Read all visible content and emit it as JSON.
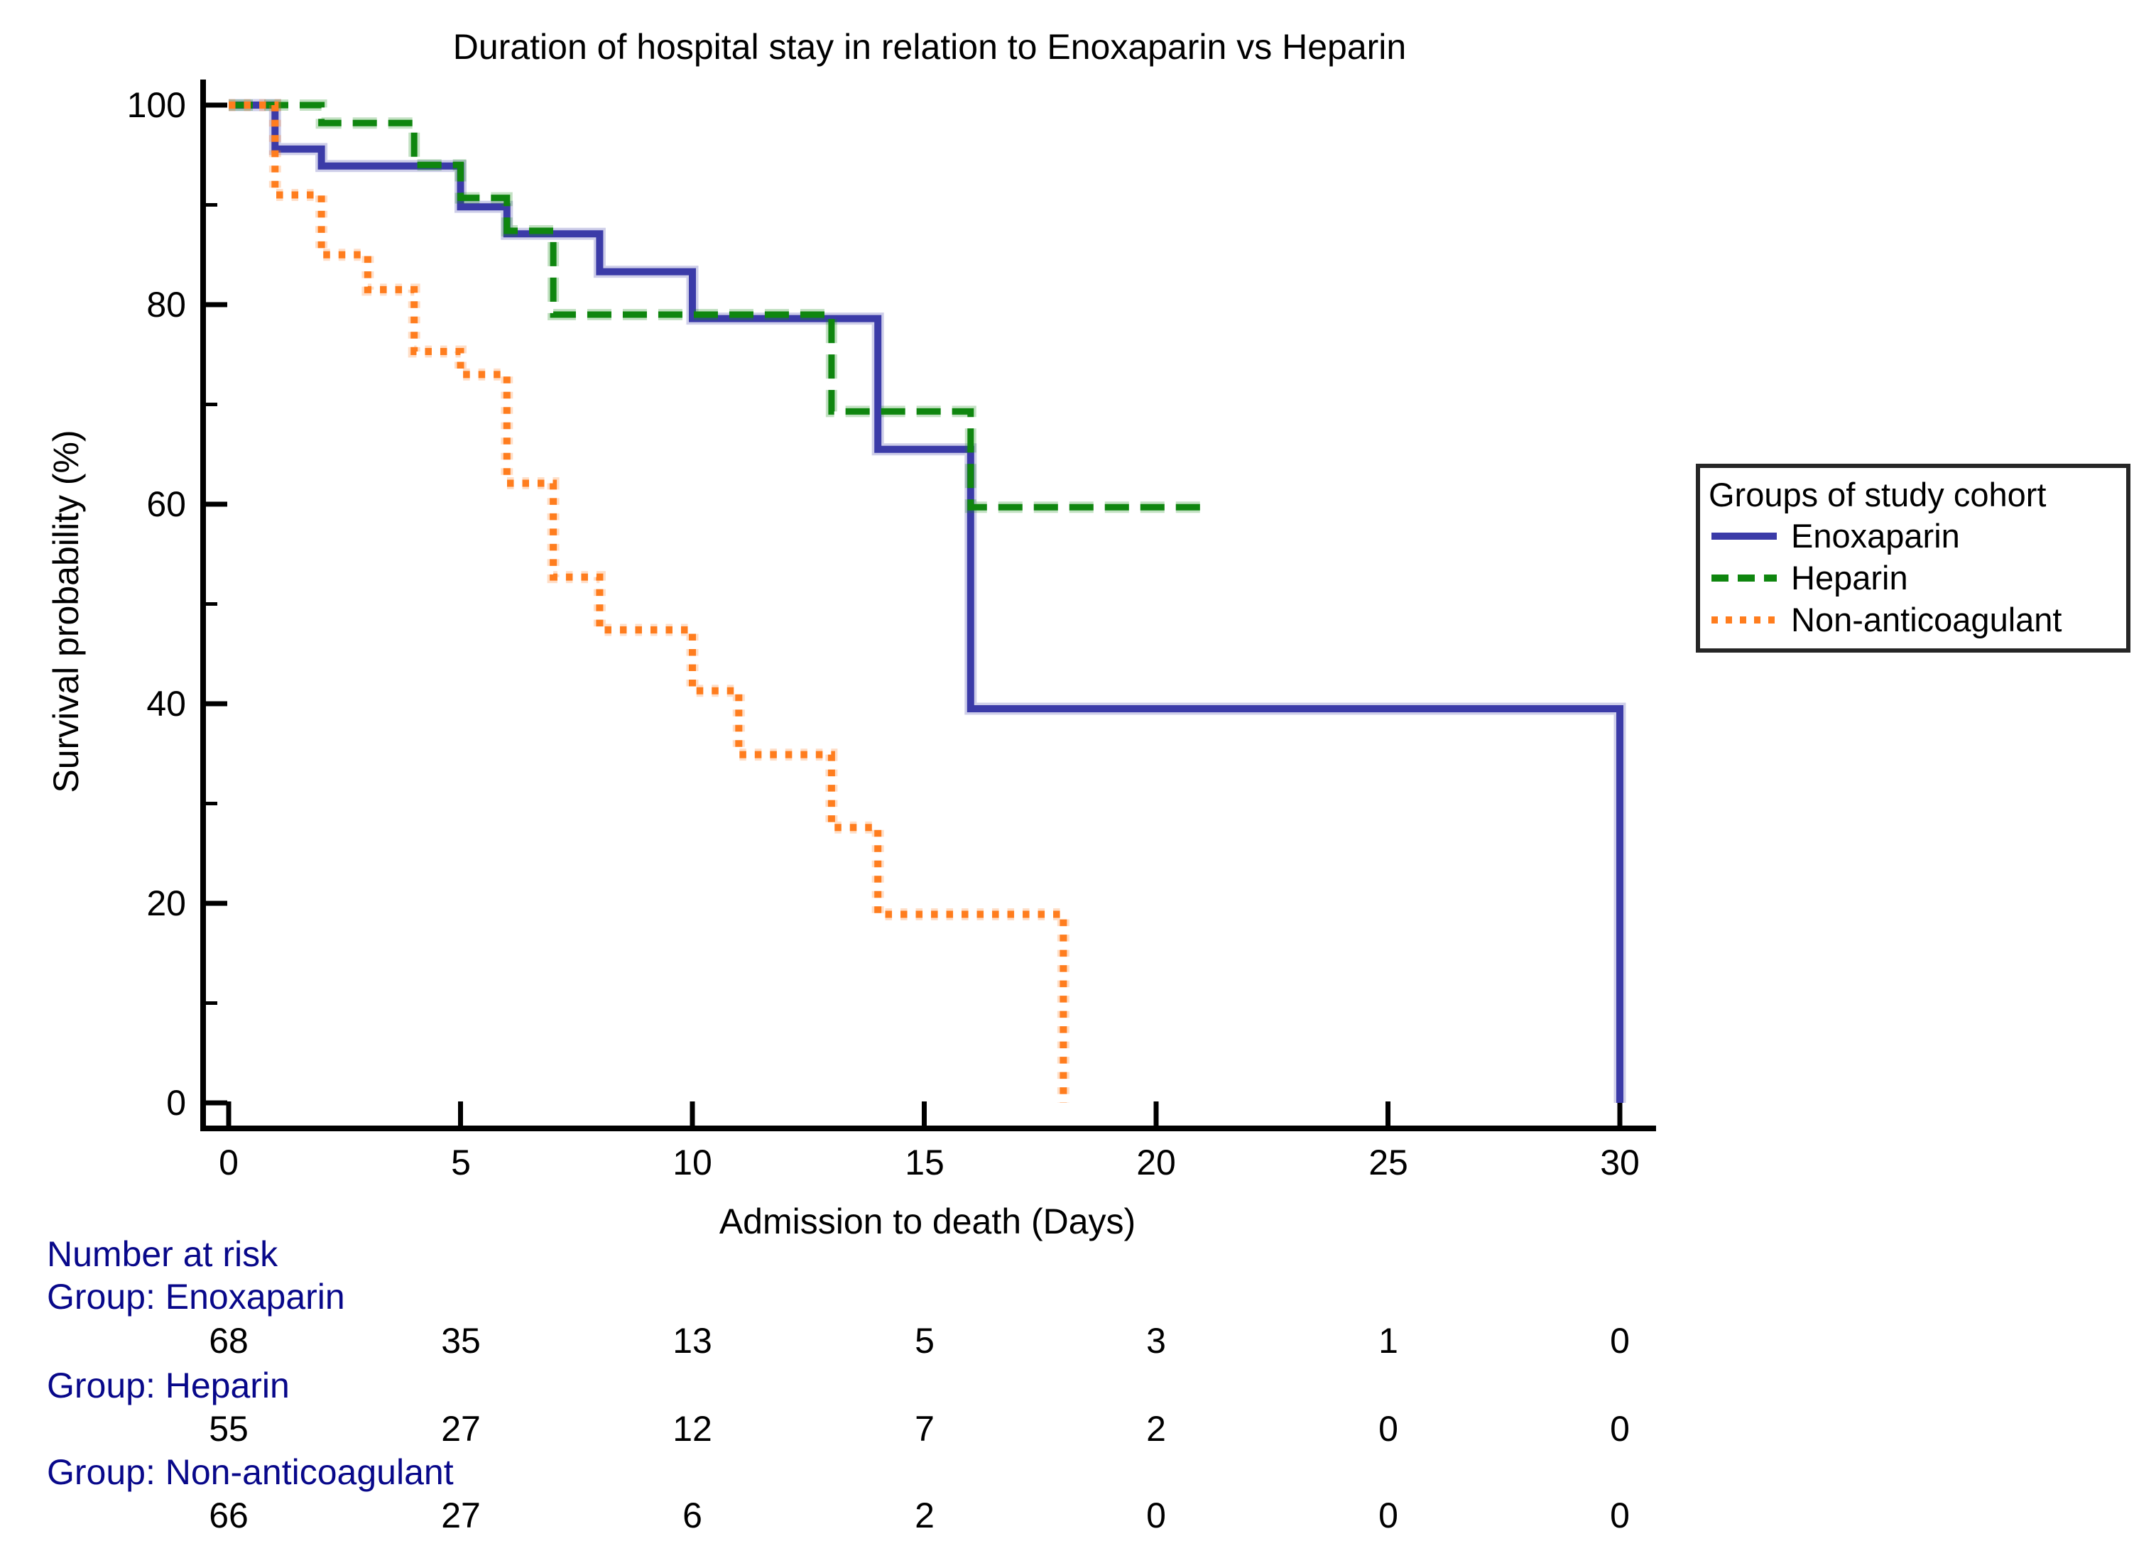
{
  "chart": {
    "title": "Duration of hospital stay in relation to Enoxaparin vs Heparin",
    "xlabel": "Admission to death (Days)",
    "ylabel": "Survival probability (%)"
  },
  "axes": {
    "x": {
      "tick_labels": [
        "0",
        "5",
        "10",
        "15",
        "20",
        "25",
        "30"
      ]
    },
    "y": {
      "tick_labels": [
        "100",
        "80",
        "60",
        "40",
        "20",
        "0"
      ]
    }
  },
  "legend": {
    "title": "Groups of study cohort"
  },
  "chart_data": {
    "type": "line",
    "subtype": "kaplan-meier-step",
    "title": "Duration of hospital stay in relation to Enoxaparin vs Heparin",
    "xlabel": "Admission to death (Days)",
    "ylabel": "Survival probability (%)",
    "xlim": [
      0,
      30.8
    ],
    "ylim": [
      0,
      100
    ],
    "x_ticks": [
      0,
      5,
      10,
      15,
      20,
      25,
      30
    ],
    "y_ticks": [
      0,
      20,
      40,
      60,
      80,
      100
    ],
    "y_minor_ticks": [
      10,
      30,
      50,
      70,
      90
    ],
    "grid": false,
    "legend_position": "right",
    "series": [
      {
        "name": "Enoxaparin",
        "color": "#3B3BA8",
        "style": "solid",
        "points": [
          [
            0,
            100
          ],
          [
            1,
            95.6
          ],
          [
            2,
            93.9
          ],
          [
            5,
            89.8
          ],
          [
            6,
            87.1
          ],
          [
            8,
            83.3
          ],
          [
            10,
            78.6
          ],
          [
            14,
            65.5
          ],
          [
            16,
            39.5
          ],
          [
            30,
            0
          ]
        ]
      },
      {
        "name": "Heparin",
        "color": "#0F860F",
        "style": "dashed",
        "points": [
          [
            0,
            100
          ],
          [
            2,
            98.2
          ],
          [
            4,
            94.0
          ],
          [
            5,
            90.7
          ],
          [
            6,
            87.4
          ],
          [
            7,
            79.0
          ],
          [
            13,
            69.3
          ],
          [
            16,
            59.7
          ]
        ],
        "end_day": 21
      },
      {
        "name": "Non-anticoagulant",
        "color": "#FF7D1E",
        "style": "dotted",
        "points": [
          [
            0,
            100
          ],
          [
            1,
            91.0
          ],
          [
            2,
            85.0
          ],
          [
            3,
            81.5
          ],
          [
            4,
            75.3
          ],
          [
            5,
            73.0
          ],
          [
            6,
            62.1
          ],
          [
            7,
            52.7
          ],
          [
            8,
            47.4
          ],
          [
            10,
            41.3
          ],
          [
            11,
            34.9
          ],
          [
            13,
            27.6
          ],
          [
            14,
            18.9
          ],
          [
            18,
            0
          ]
        ]
      }
    ]
  },
  "risk_table": {
    "header": "Number at risk",
    "time_points": [
      0,
      5,
      10,
      15,
      20,
      25,
      30
    ],
    "groups": [
      {
        "label": "Group: Enoxaparin",
        "counts": [
          "68",
          "35",
          "13",
          "5",
          "3",
          "1",
          "0"
        ]
      },
      {
        "label": "Group: Heparin",
        "counts": [
          "55",
          "27",
          "12",
          "7",
          "2",
          "0",
          "0"
        ]
      },
      {
        "label": "Group: Non-anticoagulant",
        "counts": [
          "66",
          "27",
          "6",
          "2",
          "0",
          "0",
          "0"
        ]
      }
    ]
  },
  "colors": {
    "axis": "#000000",
    "risk_label_text": "#08088A",
    "legend_border": "#262626"
  }
}
